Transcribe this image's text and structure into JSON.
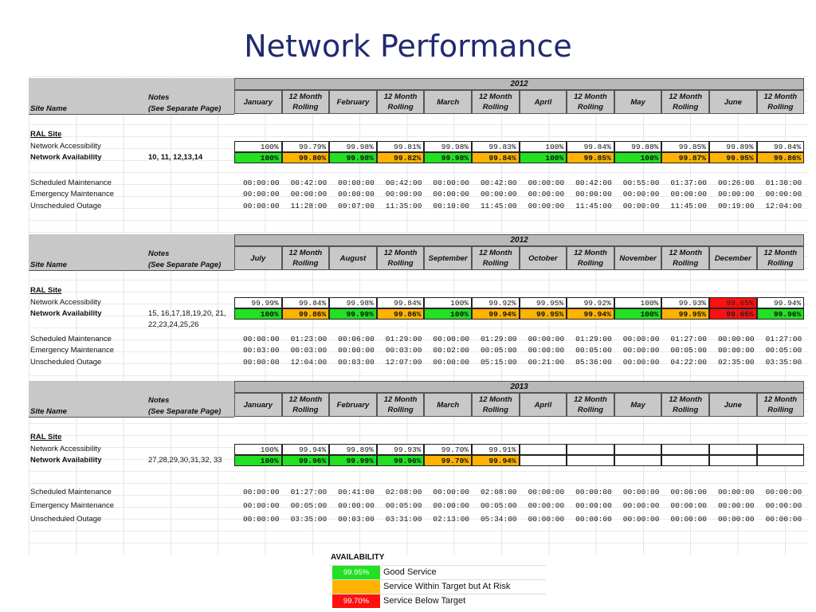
{
  "title": "Network Performance",
  "common": {
    "site_name_header": "Site Name",
    "notes_header_line1": "Notes",
    "notes_header_line2": "(See Separate Page)",
    "site_label": "RAL Site",
    "row_labels": {
      "accessibility": "Network Accessibility",
      "availability": "Network Availability",
      "scheduled": "Scheduled Maintenance",
      "emergency": "Emergency Maintenance",
      "unscheduled": "Unscheduled Outage"
    }
  },
  "tables": [
    {
      "year": "2012",
      "columns": [
        "January",
        "12 Month Rolling",
        "February",
        "12 Month Rolling",
        "March",
        "12 Month Rolling",
        "April",
        "12 Month Rolling",
        "May",
        "12 Month Rolling",
        "June",
        "12 Month Rolling"
      ],
      "notes": "10, 11, 12,13,14",
      "accessibility": [
        "100%",
        "99.79%",
        "99.98%",
        "99.81%",
        "99.98%",
        "99.83%",
        "100%",
        "99.84%",
        "99.88%",
        "99.85%",
        "99.89%",
        "99.84%"
      ],
      "availability": [
        "100%",
        "99.80%",
        "99.98%",
        "99.82%",
        "99.98%",
        "99.84%",
        "100%",
        "99.85%",
        "100%",
        "99.87%",
        "99.95%",
        "99.86%"
      ],
      "availability_status": [
        "green",
        "orange",
        "green",
        "orange",
        "green",
        "orange",
        "green",
        "orange",
        "green",
        "orange",
        "orange",
        "orange"
      ],
      "scheduled": [
        "00:00:00",
        "00:42:00",
        "00:00:00",
        "00:42:00",
        "00:00:00",
        "00:42:00",
        "00:00:00",
        "00:42:00",
        "00:55:00",
        "01:37:00",
        "00:26:00",
        "01:30:00"
      ],
      "emergency": [
        "00:00:00",
        "00:00:00",
        "00:00:00",
        "00:00:00",
        "00:00:00",
        "00:00:00",
        "00:00:00",
        "00:00:00",
        "00:00:00",
        "00:00:00",
        "00:00:00",
        "00:00:00"
      ],
      "unscheduled": [
        "00:00:00",
        "11:28:00",
        "00:07:00",
        "11:35:00",
        "00:10:00",
        "11:45:00",
        "00:00:00",
        "11:45:00",
        "00:00:00",
        "11:45:00",
        "00:19:00",
        "12:04:00"
      ]
    },
    {
      "year": "2012",
      "columns": [
        "July",
        "12 Month Rolling",
        "August",
        "12 Month Rolling",
        "September",
        "12 Month Rolling",
        "October",
        "12 Month Rolling",
        "November",
        "12 Month Rolling",
        "December",
        "12 Month Rolling"
      ],
      "notes": "15, 16,17,18,19,20, 21, 22,23,24,25,26",
      "accessibility": [
        "99.99%",
        "99.84%",
        "99.98%",
        "99.84%",
        "100%",
        "99.92%",
        "99.95%",
        "99.92%",
        "100%",
        "99.93%",
        "99.65%",
        "99.94%"
      ],
      "accessibility_status": [
        "",
        "",
        "",
        "",
        "",
        "",
        "",
        "",
        "",
        "",
        "red",
        ""
      ],
      "availability": [
        "100%",
        "99.86%",
        "99.99%",
        "99.86%",
        "100%",
        "99.94%",
        "99.95%",
        "99.94%",
        "100%",
        "99.95%",
        "99.65%",
        "99.96%"
      ],
      "availability_status": [
        "green",
        "orange",
        "green",
        "orange",
        "green",
        "orange",
        "orange",
        "orange",
        "green",
        "orange",
        "red",
        "green"
      ],
      "scheduled": [
        "00:00:00",
        "01:23:00",
        "00:06:00",
        "01:29:00",
        "00:00:00",
        "01:29:00",
        "00:00:00",
        "01:29:00",
        "00:00:00",
        "01:27:00",
        "00:00:00",
        "01:27:00"
      ],
      "emergency": [
        "00:03:00",
        "00:03:00",
        "00:00:00",
        "00:03:00",
        "00:02:00",
        "00:05:00",
        "00:00:00",
        "00:05:00",
        "00:00:00",
        "00:05:00",
        "00:00:00",
        "00:05:00"
      ],
      "unscheduled": [
        "00:00:00",
        "12:04:00",
        "00:03:00",
        "12:07:00",
        "00:00:00",
        "05:15:00",
        "00:21:00",
        "05:36:00",
        "00:00:00",
        "04:22:00",
        "02:35:00",
        "03:35:00"
      ]
    },
    {
      "year": "2013",
      "columns": [
        "January",
        "12 Month Rolling",
        "February",
        "12 Month Rolling",
        "March",
        "12 Month Rolling",
        "April",
        "12 Month Rolling",
        "May",
        "12 Month Rolling",
        "June",
        "12 Month Rolling"
      ],
      "notes": "27,28,29,30,31,32, 33",
      "accessibility": [
        "100%",
        "99.94%",
        "99.89%",
        "99.93%",
        "99.70%",
        "99.91%",
        "",
        "",
        "",
        "",
        "",
        ""
      ],
      "availability": [
        "100%",
        "99.96%",
        "99.99%",
        "99.96%",
        "99.70%",
        "99.94%",
        "",
        "",
        "",
        "",
        "",
        ""
      ],
      "availability_status": [
        "green",
        "green",
        "green",
        "green",
        "orange",
        "orange",
        "",
        "",
        "",
        "",
        "",
        ""
      ],
      "scheduled": [
        "00:00:00",
        "01:27:00",
        "00:41:00",
        "02:08:00",
        "00:00:00",
        "02:08:00",
        "00:00:00",
        "00:00:00",
        "00:00:00",
        "00:00:00",
        "00:00:00",
        "00:00:00"
      ],
      "emergency": [
        "00:00:00",
        "00:05:00",
        "00:00:00",
        "00:05:00",
        "00:00:00",
        "00:05:00",
        "00:00:00",
        "00:00:00",
        "00:00:00",
        "00:00:00",
        "00:00:00",
        "00:00:00"
      ],
      "unscheduled": [
        "00:00:00",
        "03:35:00",
        "00:03:00",
        "03:31:00",
        "02:13:00",
        "05:34:00",
        "00:00:00",
        "00:00:00",
        "00:00:00",
        "00:00:00",
        "00:00:00",
        "00:00:00"
      ]
    }
  ],
  "legend": {
    "title": "AVAILABILITY",
    "items": [
      {
        "swatch_text": "99.95%",
        "color": "#22e022",
        "label": "Good Service"
      },
      {
        "swatch_text": "",
        "color": "#ffb300",
        "label": "Service Within Target but At Risk"
      },
      {
        "swatch_text": "99.70%",
        "color": "#ff1010",
        "label": "Service Below Target"
      }
    ]
  }
}
